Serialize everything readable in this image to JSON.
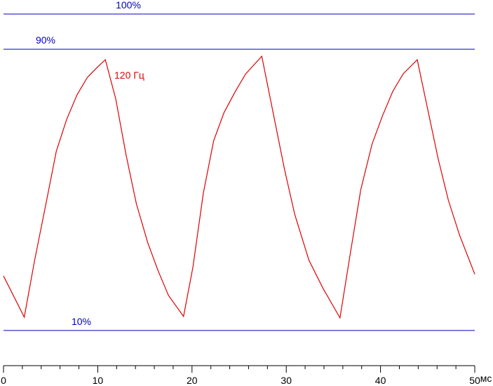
{
  "chart_data": {
    "type": "line",
    "x_label": "мс",
    "x": [
      0,
      2.2,
      3.3,
      4.5,
      5.6,
      6.7,
      7.8,
      8.9,
      10.0,
      10.8,
      11.9,
      13.0,
      14.1,
      15.3,
      16.4,
      17.5,
      19.1,
      20.1,
      21.2,
      22.3,
      23.4,
      24.6,
      25.7,
      27.4,
      28.6,
      29.8,
      30.9,
      32.4,
      33.9,
      35.7,
      36.8,
      37.9,
      39.1,
      40.2,
      41.3,
      42.4,
      43.9,
      45.0,
      46.1,
      47.2,
      48.4,
      50
    ],
    "series": [
      {
        "name": "120 Гц",
        "color": "#e00000",
        "values": [
          25.5,
          13.8,
          30,
          46,
          61,
          70,
          77,
          82,
          85,
          87,
          76,
          60,
          46,
          35,
          27,
          20,
          14,
          28,
          49,
          64,
          72,
          78,
          83,
          88,
          72,
          56,
          43,
          30,
          22,
          13.6,
          32,
          50,
          63,
          71,
          78,
          83,
          87,
          73,
          59,
          47,
          37,
          26
        ]
      }
    ],
    "xlim": [
      0,
      50
    ],
    "xticks": [
      0,
      10,
      20,
      30,
      40,
      50
    ],
    "xminorticks": [
      2,
      4,
      6,
      8,
      12,
      14,
      16,
      18,
      22,
      24,
      26,
      28,
      32,
      34,
      36,
      38,
      42,
      44,
      46,
      48
    ],
    "ylim": [
      0,
      100
    ],
    "reference_lines": [
      {
        "value": 100,
        "label": "100%"
      },
      {
        "value": 90,
        "label": "90%"
      },
      {
        "value": 10,
        "label": "10%"
      }
    ],
    "reference_color": "#0000c0"
  }
}
